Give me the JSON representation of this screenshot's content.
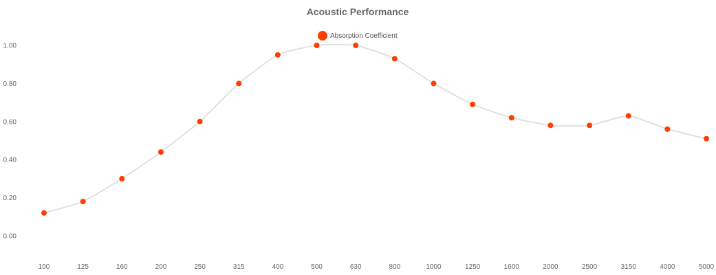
{
  "chart_data": {
    "type": "line",
    "title": "Acoustic Performance",
    "xlabel": "",
    "ylabel": "",
    "categories": [
      "100",
      "125",
      "160",
      "200",
      "250",
      "315",
      "400",
      "500",
      "630",
      "800",
      "1000",
      "1250",
      "1600",
      "2000",
      "2500",
      "3150",
      "4000",
      "5000"
    ],
    "y_ticks": [
      "0.00",
      "0.20",
      "0.40",
      "0.60",
      "0.80",
      "1.00"
    ],
    "ylim": [
      0,
      1
    ],
    "grid": false,
    "legend_position": "top-center",
    "series": [
      {
        "name": "Absorption Coefficient",
        "values": [
          0.12,
          0.18,
          0.3,
          0.44,
          0.6,
          0.8,
          0.95,
          1.0,
          1.0,
          0.93,
          0.8,
          0.69,
          0.62,
          0.58,
          0.58,
          0.63,
          0.56,
          0.51
        ]
      }
    ]
  },
  "colors": {
    "marker": "#ff3d00",
    "line": "#e0e0e0",
    "title": "#666666"
  }
}
